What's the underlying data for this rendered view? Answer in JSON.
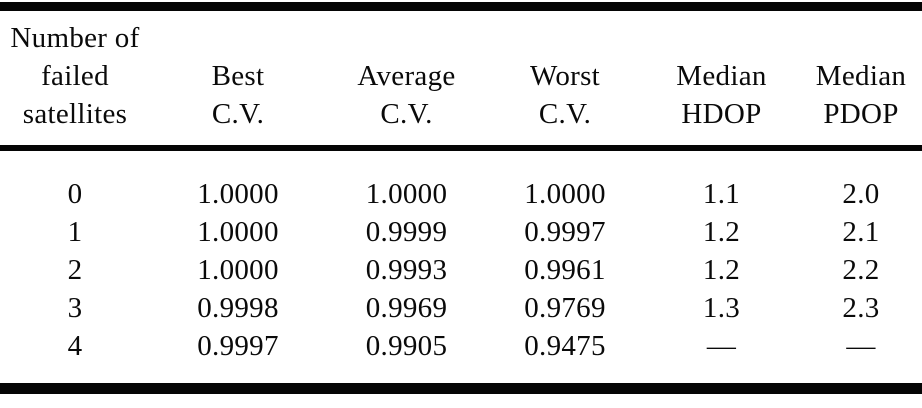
{
  "chart_data": {
    "type": "table",
    "columns": [
      "Number of failed satellites",
      "Best C.V.",
      "Average C.V.",
      "Worst C.V.",
      "Median HDOP",
      "Median PDOP"
    ],
    "header_lines": [
      [
        "Number of",
        "failed",
        "satellites"
      ],
      [
        "Best",
        "C.V."
      ],
      [
        "Average",
        "C.V."
      ],
      [
        "Worst",
        "C.V."
      ],
      [
        "Median",
        "HDOP"
      ],
      [
        "Median",
        "PDOP"
      ]
    ],
    "rows": [
      [
        "0",
        "1.0000",
        "1.0000",
        "1.0000",
        "1.1",
        "2.0"
      ],
      [
        "1",
        "1.0000",
        "0.9999",
        "0.9997",
        "1.2",
        "2.1"
      ],
      [
        "2",
        "1.0000",
        "0.9993",
        "0.9961",
        "1.2",
        "2.2"
      ],
      [
        "3",
        "0.9998",
        "0.9969",
        "0.9769",
        "1.3",
        "2.3"
      ],
      [
        "4",
        "0.9997",
        "0.9905",
        "0.9475",
        "—",
        "—"
      ]
    ],
    "colors": {
      "text": "#0a0a0a",
      "rule": "#050505",
      "background": "#ffffff"
    }
  }
}
